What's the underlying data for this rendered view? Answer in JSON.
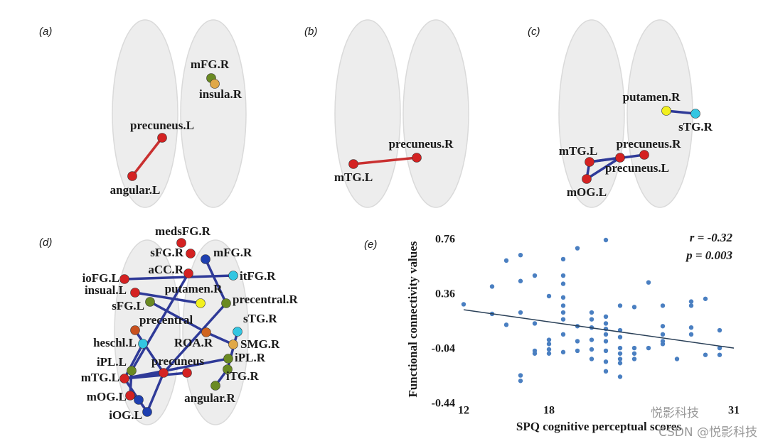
{
  "panels": [
    {
      "label": "(a)",
      "nodes": [
        "mFG.R",
        "insula.R",
        "precuneus.L",
        "angular.L"
      ]
    },
    {
      "label": "(b)",
      "nodes": [
        "precuneus.R",
        "mTG.L"
      ]
    },
    {
      "label": "(c)",
      "nodes": [
        "putamen.R",
        "sTG.R",
        "mTG.L",
        "precuneus.R",
        "precuneus.L",
        "mOG.L"
      ]
    },
    {
      "label": "(d)",
      "nodes": [
        "medsFG.R",
        "sFG.R",
        "mFG.R",
        "aCC.R",
        "ioFG.L",
        "itFG.R",
        "insual.L",
        "putamen.R",
        "sFG.L",
        "precentral.R",
        "sTG.R",
        "precentral",
        "heschl.L",
        "ROA.R",
        "SMG.R",
        "iPL.R",
        "iPL.L",
        "precuneus",
        "mTG.L",
        "iTG.R",
        "mOG.L",
        "angular.R",
        "iOG.L"
      ]
    }
  ],
  "chart_data": {
    "type": "scatter",
    "label": "(e)",
    "xlabel": "SPQ cognitive perceptual scores",
    "ylabel": "Functional connectivity values",
    "annotations": [
      "r = -0.32",
      "p = 0.003"
    ],
    "color": "#4a7fc1",
    "fit_color": "#2a4058",
    "x": [
      12,
      14,
      14,
      15,
      15,
      16,
      16,
      16,
      17,
      17,
      17,
      17,
      16,
      16,
      18,
      18,
      18,
      18,
      18,
      19,
      19,
      19,
      19,
      19,
      19,
      19,
      19,
      19,
      20,
      20,
      20,
      20,
      21,
      21,
      21,
      21,
      21,
      21,
      22,
      22,
      22,
      22,
      22,
      22,
      22,
      22,
      22,
      23,
      23,
      23,
      23,
      23,
      23,
      23,
      23,
      24,
      24,
      24,
      24,
      25,
      25,
      26,
      26,
      26,
      26,
      26,
      27,
      28,
      28,
      28,
      28,
      29,
      29,
      30,
      30,
      30
    ],
    "y": [
      0.29,
      0.42,
      0.22,
      0.61,
      0.14,
      0.65,
      0.46,
      0.23,
      0.5,
      0.15,
      -0.05,
      -0.07,
      -0.23,
      -0.27,
      0.35,
      0.03,
      0.0,
      -0.04,
      -0.07,
      0.62,
      0.5,
      0.44,
      0.34,
      0.28,
      0.23,
      0.18,
      0.07,
      -0.06,
      0.7,
      0.13,
      0.02,
      -0.05,
      0.23,
      0.18,
      0.12,
      0.03,
      -0.04,
      -0.11,
      0.76,
      0.2,
      0.15,
      0.11,
      0.07,
      0.02,
      -0.05,
      -0.13,
      -0.2,
      0.28,
      0.1,
      0.05,
      -0.03,
      -0.07,
      -0.11,
      -0.14,
      -0.24,
      0.27,
      -0.03,
      -0.07,
      -0.11,
      0.45,
      -0.03,
      0.28,
      0.13,
      0.07,
      0.02,
      0.0,
      -0.11,
      0.31,
      0.28,
      0.12,
      0.07,
      0.33,
      -0.08,
      0.1,
      -0.03,
      -0.08
    ],
    "fit": {
      "x": [
        12,
        31
      ],
      "y": [
        0.25,
        -0.03
      ]
    },
    "xlim": [
      11.5,
      31.5
    ],
    "ylim": [
      -0.44,
      0.8
    ],
    "xticks": [
      12,
      18,
      31
    ],
    "yticks": [
      0.76,
      0.36,
      -0.04,
      -0.44
    ]
  },
  "watermark": {
    "main": "悦影科技",
    "credit": "CSDN @悦影科技"
  }
}
